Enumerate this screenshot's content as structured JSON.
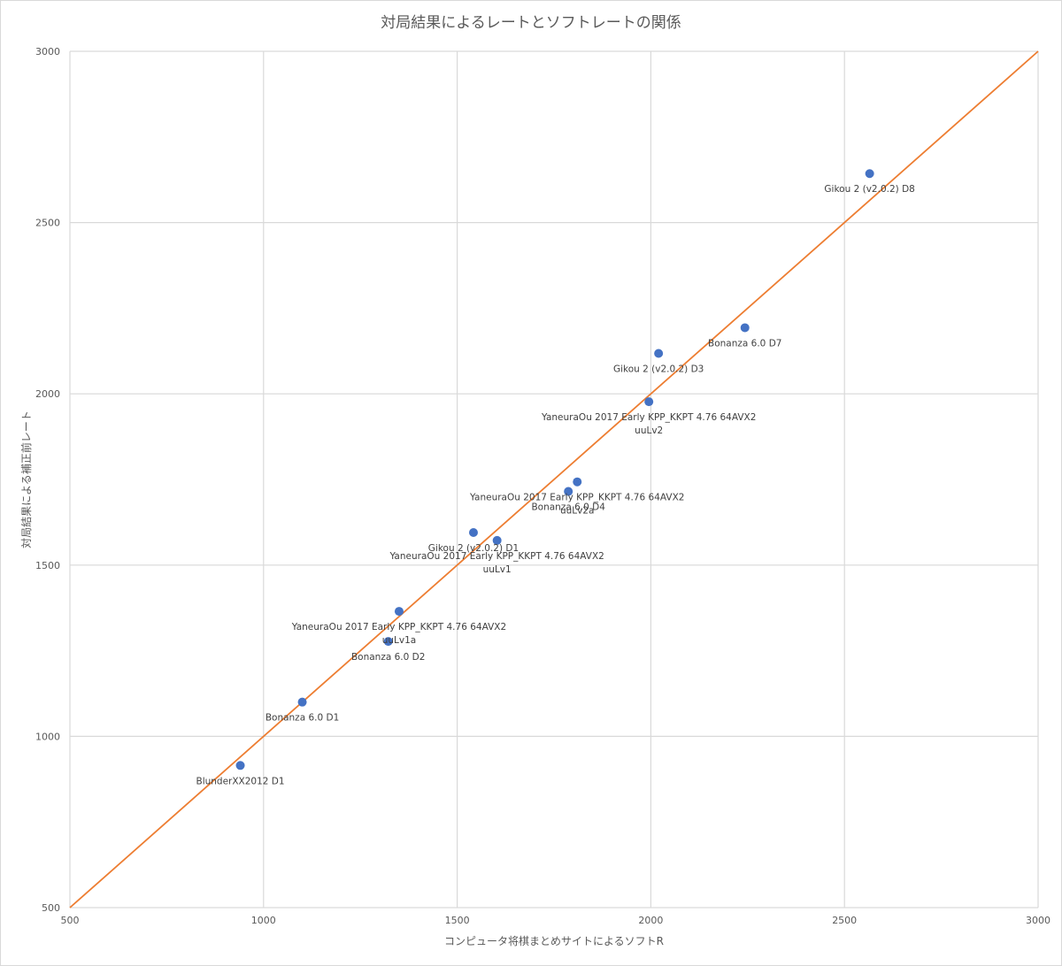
{
  "chart_data": {
    "type": "scatter",
    "title": "対局結果によるレートとソフトレートの関係",
    "xlabel": "コンピュータ将棋まとめサイトによるソフトR",
    "ylabel": "対局結果による補正前レート",
    "xlim": [
      500,
      3000
    ],
    "ylim": [
      500,
      3000
    ],
    "xticks": [
      "500",
      "1000",
      "1500",
      "2000",
      "2500",
      "3000"
    ],
    "yticks": [
      "500",
      "1000",
      "1500",
      "2000",
      "2500",
      "3000"
    ],
    "grid": true,
    "legend": "none",
    "colors": {
      "points": "#4472c4",
      "reference_line": "#ed7d31"
    },
    "reference_line": {
      "x": [
        500,
        3000
      ],
      "y": [
        500,
        3000
      ]
    },
    "points": [
      {
        "x": 940,
        "y": 915,
        "label": [
          "BlunderXX2012 D1"
        ]
      },
      {
        "x": 1100,
        "y": 1100,
        "label": [
          "Bonanza 6.0 D1"
        ]
      },
      {
        "x": 1322,
        "y": 1277,
        "label": [
          "Bonanza 6.0 D2"
        ]
      },
      {
        "x": 1350,
        "y": 1365,
        "label": [
          "YaneuraOu 2017 Early KPP_KKPT 4.76 64AVX2",
          "uuLv1a"
        ]
      },
      {
        "x": 1542,
        "y": 1595,
        "label": [
          "Gikou 2 (v2.0.2) D1"
        ]
      },
      {
        "x": 1603,
        "y": 1572,
        "label": [
          "YaneuraOu 2017 Early KPP_KKPT 4.76 64AVX2",
          "uuLv1"
        ]
      },
      {
        "x": 1787,
        "y": 1715,
        "label": [
          "Bonanza 6.0 D4"
        ]
      },
      {
        "x": 1810,
        "y": 1743,
        "label": [
          "YaneuraOu 2017 Early KPP_KKPT 4.76 64AVX2",
          "uuLv2a"
        ]
      },
      {
        "x": 1995,
        "y": 1977,
        "label": [
          "YaneuraOu 2017 Early KPP_KKPT 4.76 64AVX2",
          "uuLv2"
        ]
      },
      {
        "x": 2020,
        "y": 2118,
        "label": [
          "Gikou 2 (v2.0.2) D3"
        ]
      },
      {
        "x": 2243,
        "y": 2193,
        "label": [
          "Bonanza 6.0 D7"
        ]
      },
      {
        "x": 2565,
        "y": 2643,
        "label": [
          "Gikou 2 (v2.0.2) D8"
        ]
      }
    ]
  }
}
